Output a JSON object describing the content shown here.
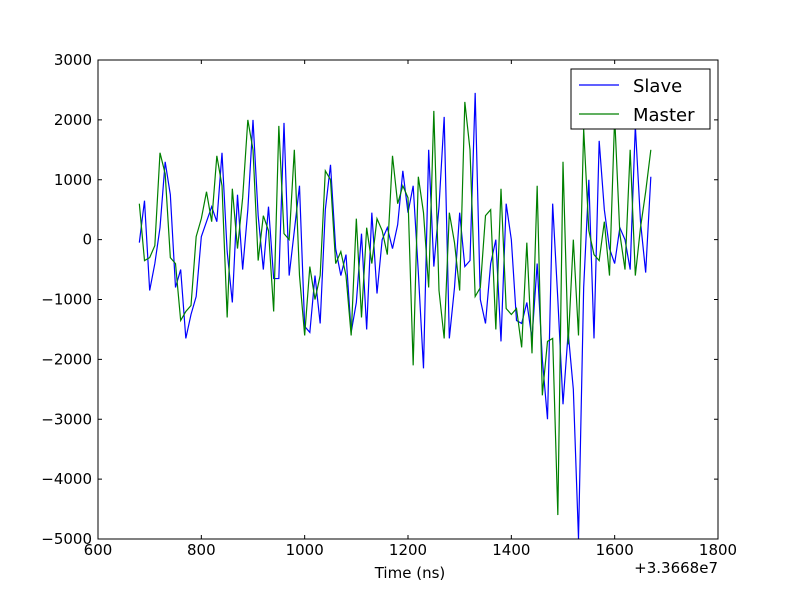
{
  "chart_data": {
    "type": "line",
    "xlabel": "Time (ns)",
    "x_offset_label": "+3.3668e7",
    "x": [
      680,
      690,
      700,
      710,
      720,
      730,
      740,
      750,
      760,
      770,
      780,
      790,
      800,
      810,
      820,
      830,
      840,
      850,
      860,
      870,
      880,
      890,
      900,
      910,
      920,
      930,
      940,
      950,
      960,
      970,
      980,
      990,
      1000,
      1010,
      1020,
      1030,
      1040,
      1050,
      1060,
      1070,
      1080,
      1090,
      1100,
      1110,
      1120,
      1130,
      1140,
      1150,
      1160,
      1170,
      1180,
      1190,
      1200,
      1210,
      1220,
      1230,
      1240,
      1250,
      1260,
      1270,
      1280,
      1290,
      1300,
      1310,
      1320,
      1330,
      1340,
      1350,
      1360,
      1370,
      1380,
      1390,
      1400,
      1410,
      1420,
      1430,
      1440,
      1450,
      1460,
      1470,
      1480,
      1490,
      1500,
      1510,
      1520,
      1530,
      1540,
      1550,
      1560,
      1570,
      1580,
      1590,
      1600,
      1610,
      1620,
      1630,
      1640,
      1650,
      1660,
      1670
    ],
    "series": [
      {
        "name": "Slave",
        "color": "#0000ff",
        "values": [
          -50,
          650,
          -850,
          -400,
          200,
          1300,
          750,
          -800,
          -500,
          -1650,
          -1250,
          -950,
          50,
          300,
          550,
          300,
          1450,
          -200,
          -1050,
          750,
          -500,
          500,
          2000,
          400,
          -500,
          550,
          -650,
          -650,
          1950,
          -600,
          150,
          900,
          -1450,
          -1550,
          -600,
          -1400,
          500,
          1250,
          -150,
          -600,
          -250,
          -1550,
          -1050,
          100,
          -1500,
          450,
          -900,
          0,
          200,
          -150,
          250,
          1150,
          450,
          900,
          -550,
          -2150,
          1500,
          -450,
          550,
          2050,
          -1650,
          -800,
          450,
          -450,
          -350,
          2450,
          -1000,
          -1400,
          -400,
          0,
          -1700,
          600,
          0,
          -1350,
          -1400,
          -1050,
          -1650,
          -400,
          -2000,
          -3000,
          600,
          -1000,
          -2750,
          -1550,
          -2500,
          -5000,
          -800,
          1000,
          -1650,
          1650,
          500,
          -150,
          -400,
          200,
          0,
          -500,
          1900,
          300,
          -550,
          1050
        ]
      },
      {
        "name": "Master",
        "color": "#008000",
        "values": [
          600,
          -350,
          -300,
          -100,
          1450,
          1100,
          -300,
          -400,
          -1350,
          -1200,
          -1100,
          50,
          350,
          800,
          300,
          1400,
          900,
          -1300,
          850,
          -150,
          700,
          2000,
          1500,
          -350,
          400,
          150,
          -1200,
          1900,
          100,
          0,
          1500,
          -600,
          -1600,
          -450,
          -1000,
          -600,
          1150,
          1000,
          -400,
          -200,
          -600,
          -1600,
          350,
          -1300,
          200,
          -400,
          350,
          150,
          -250,
          1400,
          600,
          900,
          700,
          -2100,
          1050,
          450,
          -800,
          2150,
          -850,
          -1650,
          450,
          -50,
          -850,
          2300,
          1500,
          -950,
          -800,
          400,
          500,
          -1500,
          850,
          -1150,
          -1250,
          -1150,
          -1800,
          -50,
          -1900,
          900,
          -2600,
          -1700,
          -1650,
          -4600,
          1300,
          -1750,
          0,
          -1600,
          1850,
          150,
          -250,
          -350,
          300,
          -600,
          2050,
          100,
          -500,
          1500,
          -600,
          200,
          800,
          1500
        ]
      }
    ],
    "xlim": [
      600,
      1800
    ],
    "xticks": [
      600,
      800,
      1000,
      1200,
      1400,
      1600,
      1800
    ],
    "ylim": [
      -5000,
      3000
    ],
    "yticks": [
      {
        "value": -5000,
        "label": "−5000"
      },
      {
        "value": -4000,
        "label": "−4000"
      },
      {
        "value": -3000,
        "label": "−3000"
      },
      {
        "value": -2000,
        "label": "−2000"
      },
      {
        "value": -1000,
        "label": "−1000"
      },
      0,
      1000,
      2000,
      3000
    ],
    "legend": "upper right",
    "grid": false
  }
}
